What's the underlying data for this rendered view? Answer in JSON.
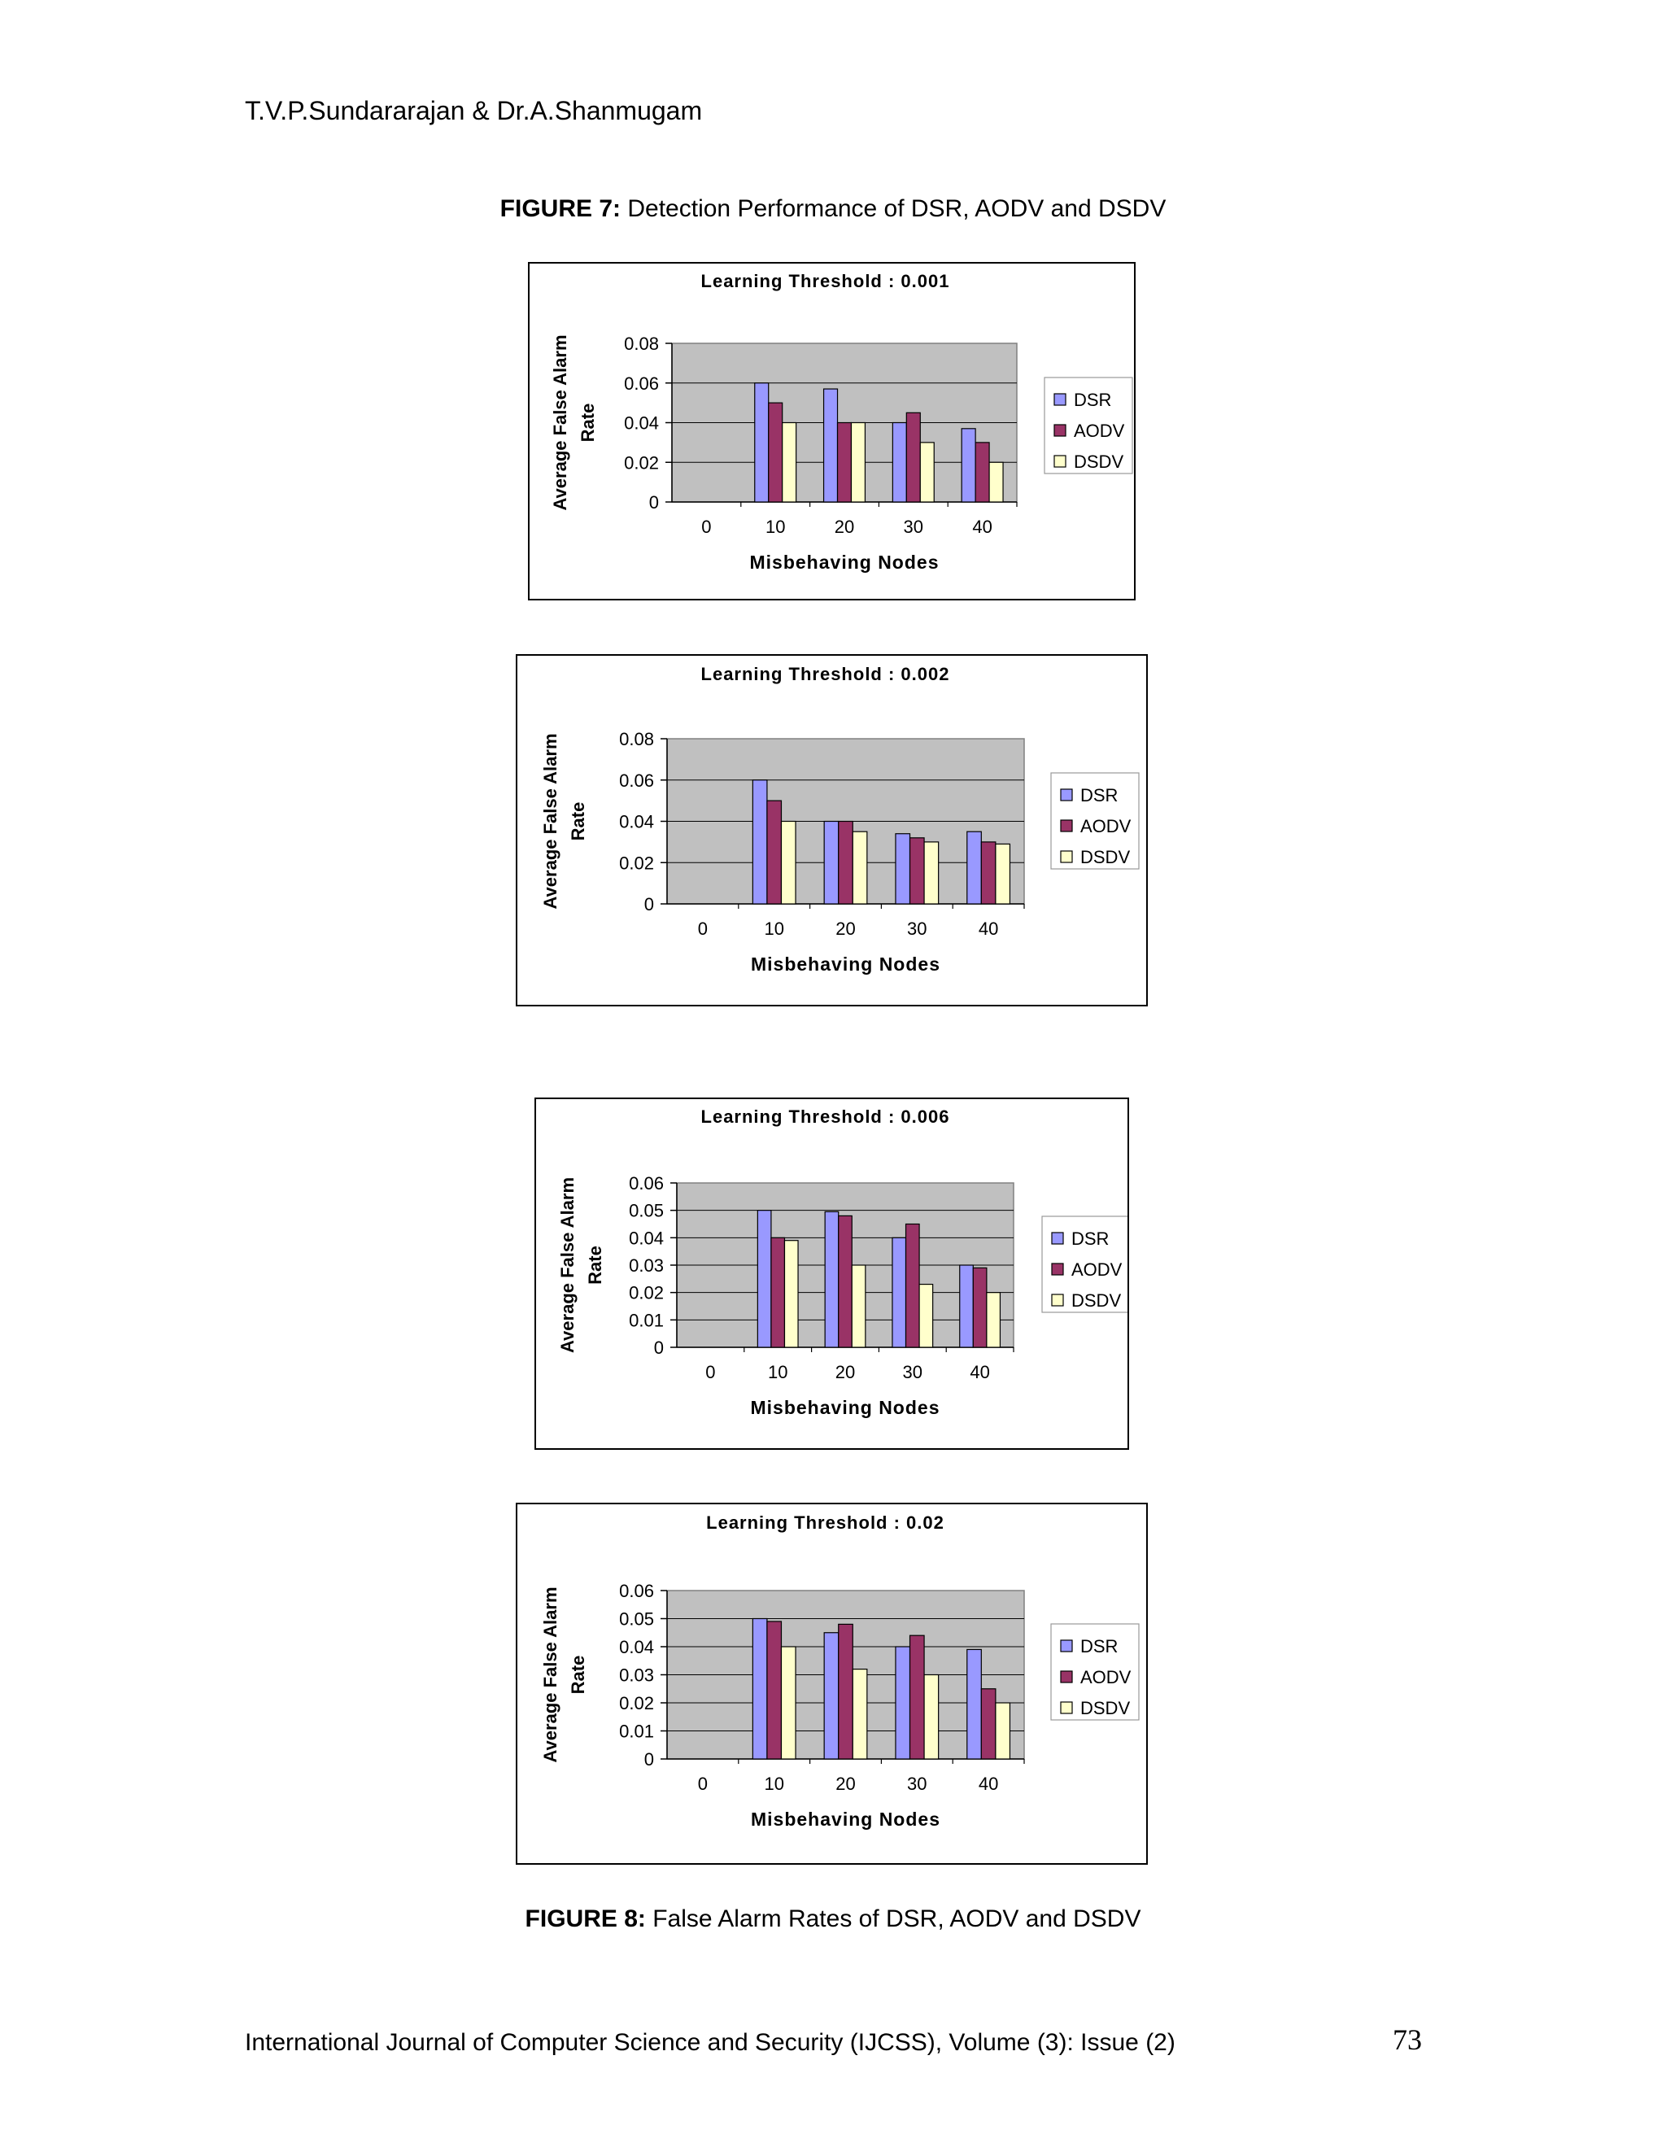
{
  "header": {
    "authors": "T.V.P.Sundararajan & Dr.A.Shanmugam"
  },
  "figure7": {
    "label": "FIGURE 7:",
    "caption": "Detection Performance of DSR, AODV and DSDV"
  },
  "figure8": {
    "label": "FIGURE 8:",
    "caption": "False Alarm Rates of DSR, AODV and DSDV"
  },
  "footer": {
    "journal": "International Journal of Computer Science and Security (IJCSS), Volume (3): Issue (2)",
    "page_number": "73"
  },
  "colors": {
    "DSR": "#9999ff",
    "AODV": "#993366",
    "DSDV": "#ffffcc",
    "plot_bg": "#c0c0c0",
    "gridline": "#000000"
  },
  "chart_data": [
    {
      "type": "bar",
      "title": "Learning Threshold : 0.001",
      "xlabel": "Misbehaving Nodes",
      "ylabel": [
        "Average False Alarm",
        "Rate"
      ],
      "categories": [
        "0",
        "10",
        "20",
        "30",
        "40"
      ],
      "ylim": [
        0,
        0.08
      ],
      "yticks": [
        "0",
        "0.02",
        "0.04",
        "0.06",
        "0.08"
      ],
      "grid": true,
      "legend": "right",
      "series": [
        {
          "name": "DSR",
          "values": [
            0,
            0.06,
            0.057,
            0.04,
            0.037
          ]
        },
        {
          "name": "AODV",
          "values": [
            0,
            0.05,
            0.04,
            0.045,
            0.03
          ]
        },
        {
          "name": "DSDV",
          "values": [
            0,
            0.04,
            0.04,
            0.03,
            0.02
          ]
        }
      ]
    },
    {
      "type": "bar",
      "title": "Learning Threshold : 0.002",
      "xlabel": "Misbehaving Nodes",
      "ylabel": [
        "Average False Alarm",
        "Rate"
      ],
      "categories": [
        "0",
        "10",
        "20",
        "30",
        "40"
      ],
      "ylim": [
        0,
        0.08
      ],
      "yticks": [
        "0",
        "0.02",
        "0.04",
        "0.06",
        "0.08"
      ],
      "grid": true,
      "legend": "right",
      "series": [
        {
          "name": "DSR",
          "values": [
            0,
            0.06,
            0.04,
            0.034,
            0.035
          ]
        },
        {
          "name": "AODV",
          "values": [
            0,
            0.05,
            0.04,
            0.032,
            0.03
          ]
        },
        {
          "name": "DSDV",
          "values": [
            0,
            0.04,
            0.035,
            0.03,
            0.029
          ]
        }
      ]
    },
    {
      "type": "bar",
      "title": "Learning Threshold : 0.006",
      "xlabel": "Misbehaving Nodes",
      "ylabel": [
        "Average False Alarm",
        "Rate"
      ],
      "categories": [
        "0",
        "10",
        "20",
        "30",
        "40"
      ],
      "ylim": [
        0,
        0.06
      ],
      "yticks": [
        "0",
        "0.01",
        "0.02",
        "0.03",
        "0.04",
        "0.05",
        "0.06"
      ],
      "grid": true,
      "legend": "right",
      "series": [
        {
          "name": "DSR",
          "values": [
            0,
            0.05,
            0.0495,
            0.04,
            0.03
          ]
        },
        {
          "name": "AODV",
          "values": [
            0,
            0.04,
            0.048,
            0.045,
            0.029
          ]
        },
        {
          "name": "DSDV",
          "values": [
            0,
            0.039,
            0.03,
            0.023,
            0.02
          ]
        }
      ]
    },
    {
      "type": "bar",
      "title": "Learning Threshold : 0.02",
      "xlabel": "Misbehaving Nodes",
      "ylabel": [
        "Average False Alarm",
        "Rate"
      ],
      "categories": [
        "0",
        "10",
        "20",
        "30",
        "40"
      ],
      "ylim": [
        0,
        0.06
      ],
      "yticks": [
        "0",
        "0.01",
        "0.02",
        "0.03",
        "0.04",
        "0.05",
        "0.06"
      ],
      "grid": true,
      "legend": "right",
      "series": [
        {
          "name": "DSR",
          "values": [
            0,
            0.05,
            0.045,
            0.04,
            0.039
          ]
        },
        {
          "name": "AODV",
          "values": [
            0,
            0.049,
            0.048,
            0.044,
            0.025
          ]
        },
        {
          "name": "DSDV",
          "values": [
            0,
            0.04,
            0.032,
            0.03,
            0.02
          ]
        }
      ]
    }
  ]
}
